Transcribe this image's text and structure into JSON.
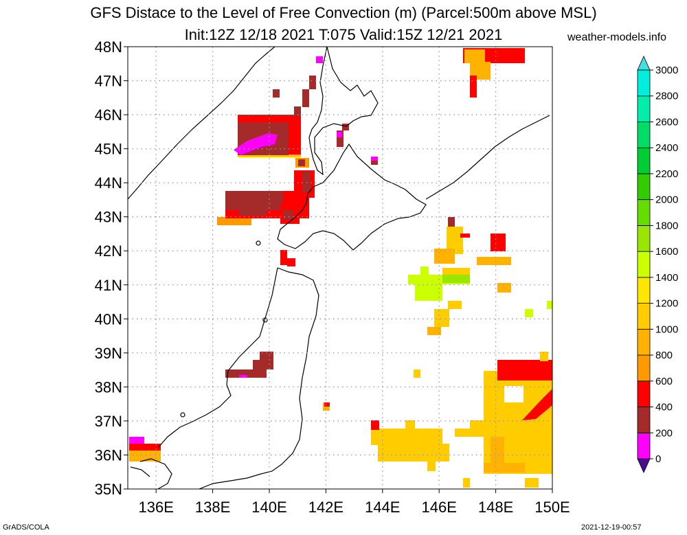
{
  "title": {
    "line1": "GFS Distace to the Level of Free Convection (m) (Parcel:500m above MSL)",
    "line2": "Init:12Z 12/18 2021 T:075 Valid:15Z 12/21 2021",
    "credit": "weather-models.info"
  },
  "footer": {
    "left": "GrADS/COLA",
    "right": "2021-12-19-00:57"
  },
  "map": {
    "lon_range": [
      135,
      150
    ],
    "lat_range": [
      35,
      48
    ],
    "lat_labels": [
      "35N",
      "36N",
      "37N",
      "38N",
      "39N",
      "40N",
      "41N",
      "42N",
      "43N",
      "44N",
      "45N",
      "46N",
      "47N",
      "48N"
    ],
    "lon_labels": [
      "136E",
      "138E",
      "140E",
      "142E",
      "144E",
      "146E",
      "148E",
      "150E"
    ],
    "lon_ticks": [
      136,
      138,
      140,
      142,
      144,
      146,
      148,
      150
    ],
    "grid": "dotted"
  },
  "colorbar": {
    "labels": [
      "0",
      "200",
      "400",
      "600",
      "800",
      "1000",
      "1200",
      "1400",
      "1600",
      "1800",
      "2000",
      "2200",
      "2400",
      "2600",
      "2800",
      "3000"
    ],
    "colors": [
      "#4a0e8c",
      "#ff00ff",
      "#a52a2a",
      "#ff0000",
      "#ff9900",
      "#ffb300",
      "#ffcc00",
      "#ffe600",
      "#ccff00",
      "#99e600",
      "#66dd00",
      "#33cc00",
      "#00cc33",
      "#00dd66",
      "#00eeaa",
      "#00eedd"
    ],
    "colors_hex_note": ""
  },
  "colors": {
    "c200": "#ff00ff",
    "c400": "#a52a2a",
    "c600": "#ff0000",
    "c800": "#ff9900",
    "c1000": "#ffb300",
    "c1200": "#ffcc00",
    "c1400": "#ffe600",
    "c1600": "#ccff00",
    "c1800": "#99e600"
  }
}
